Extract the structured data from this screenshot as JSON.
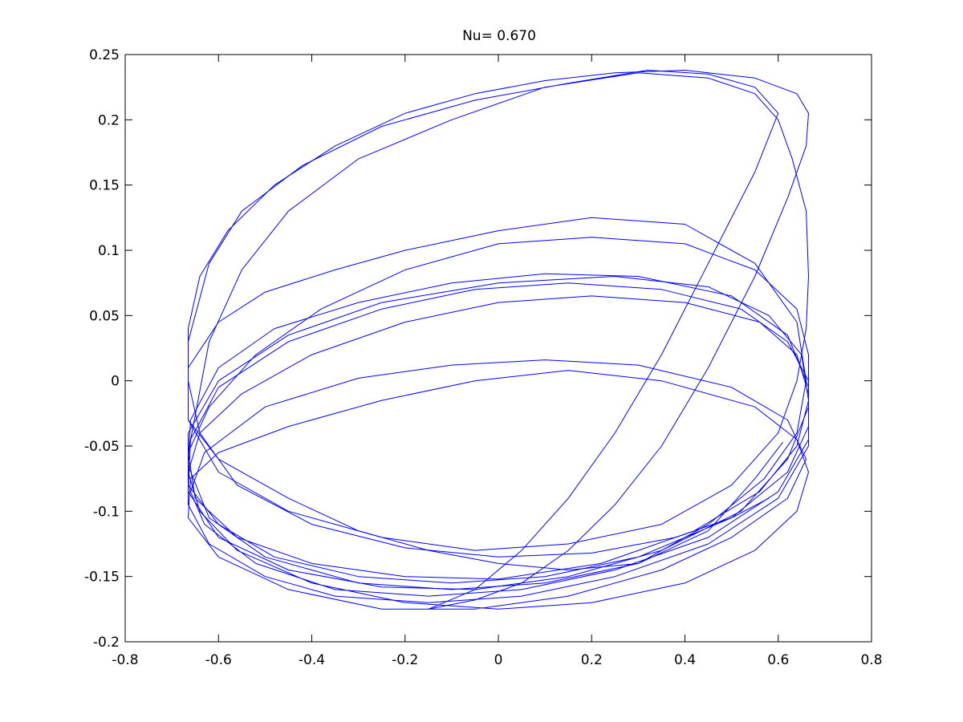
{
  "chart_data": {
    "type": "line",
    "title": "Nu= 0.670",
    "xlabel": "",
    "ylabel": "",
    "xlim": [
      -0.8,
      0.8
    ],
    "ylim": [
      -0.2,
      0.25
    ],
    "x_ticks": [
      -0.8,
      -0.6,
      -0.4,
      -0.2,
      0,
      0.2,
      0.4,
      0.6,
      0.8
    ],
    "x_tick_labels": [
      "-0.8",
      "-0.6",
      "-0.4",
      "-0.2",
      "0",
      "0.2",
      "0.4",
      "0.6",
      "0.8"
    ],
    "y_ticks": [
      -0.2,
      -0.15,
      -0.1,
      -0.05,
      0,
      0.05,
      0.1,
      0.15,
      0.2,
      0.25
    ],
    "y_tick_labels": [
      "-0.2",
      "-0.15",
      "-0.1",
      "-0.05",
      "0",
      "0.05",
      "0.1",
      "0.15",
      "0.2",
      "0.25"
    ],
    "grid": false,
    "legend": "none",
    "series_color": "#0000ff",
    "series": [
      {
        "points": [
          [
            0.61,
            -0.047
          ],
          [
            0.55,
            -0.075
          ],
          [
            0.45,
            -0.115
          ],
          [
            0.3,
            -0.14
          ],
          [
            0.15,
            -0.145
          ],
          [
            0.0,
            -0.14
          ],
          [
            -0.15,
            -0.13
          ],
          [
            -0.3,
            -0.115
          ],
          [
            -0.45,
            -0.09
          ],
          [
            -0.6,
            -0.06
          ],
          [
            -0.665,
            -0.03
          ],
          [
            -0.665,
            0.01
          ],
          [
            -0.6,
            0.045
          ],
          [
            -0.5,
            0.068
          ],
          [
            -0.35,
            0.085
          ],
          [
            -0.2,
            0.1
          ],
          [
            0.0,
            0.115
          ],
          [
            0.2,
            0.125
          ],
          [
            0.4,
            0.12
          ],
          [
            0.55,
            0.09
          ],
          [
            0.64,
            0.045
          ],
          [
            0.66,
            0.0
          ],
          [
            0.64,
            -0.04
          ],
          [
            0.57,
            -0.075
          ],
          [
            0.45,
            -0.11
          ],
          [
            0.3,
            -0.14
          ],
          [
            0.1,
            -0.155
          ],
          [
            -0.1,
            -0.16
          ],
          [
            -0.3,
            -0.155
          ],
          [
            -0.5,
            -0.135
          ],
          [
            -0.62,
            -0.105
          ],
          [
            -0.665,
            -0.065
          ],
          [
            -0.66,
            -0.03
          ],
          [
            -0.6,
            0.01
          ],
          [
            -0.48,
            0.04
          ],
          [
            -0.3,
            0.06
          ],
          [
            -0.1,
            0.075
          ],
          [
            0.1,
            0.082
          ],
          [
            0.3,
            0.08
          ],
          [
            0.5,
            0.065
          ],
          [
            0.62,
            0.035
          ],
          [
            0.665,
            -0.005
          ],
          [
            0.665,
            -0.045
          ],
          [
            0.6,
            -0.085
          ],
          [
            0.45,
            -0.12
          ],
          [
            0.25,
            -0.145
          ],
          [
            0.05,
            -0.16
          ],
          [
            -0.15,
            -0.165
          ],
          [
            -0.35,
            -0.16
          ],
          [
            -0.52,
            -0.14
          ],
          [
            -0.63,
            -0.11
          ],
          [
            -0.66,
            -0.085
          ],
          [
            -0.63,
            -0.055
          ],
          [
            -0.5,
            -0.02
          ],
          [
            -0.3,
            0.002
          ],
          [
            -0.1,
            0.012
          ],
          [
            0.1,
            0.016
          ],
          [
            0.3,
            0.012
          ],
          [
            0.5,
            -0.005
          ],
          [
            0.62,
            -0.03
          ],
          [
            0.66,
            -0.06
          ],
          [
            0.62,
            -0.09
          ],
          [
            0.5,
            -0.12
          ],
          [
            0.35,
            -0.145
          ],
          [
            0.15,
            -0.165
          ],
          [
            -0.05,
            -0.175
          ],
          [
            -0.25,
            -0.175
          ],
          [
            -0.45,
            -0.16
          ],
          [
            -0.6,
            -0.135
          ],
          [
            -0.665,
            -0.105
          ],
          [
            -0.66,
            -0.075
          ],
          [
            -0.6,
            -0.055
          ],
          [
            -0.45,
            -0.035
          ],
          [
            -0.25,
            -0.015
          ],
          [
            -0.05,
            0.0
          ],
          [
            0.15,
            0.008
          ],
          [
            0.35,
            0.0
          ],
          [
            0.55,
            -0.02
          ],
          [
            0.64,
            -0.045
          ],
          [
            0.665,
            -0.07
          ],
          [
            0.64,
            -0.1
          ],
          [
            0.55,
            -0.13
          ],
          [
            0.4,
            -0.155
          ],
          [
            0.2,
            -0.17
          ],
          [
            0.0,
            -0.175
          ],
          [
            -0.2,
            -0.17
          ],
          [
            -0.4,
            -0.155
          ],
          [
            -0.56,
            -0.13
          ],
          [
            -0.64,
            -0.1
          ],
          [
            -0.665,
            -0.07
          ]
        ]
      },
      {
        "points": [
          [
            -0.665,
            -0.07
          ],
          [
            -0.64,
            -0.04
          ],
          [
            -0.55,
            -0.01
          ],
          [
            -0.4,
            0.02
          ],
          [
            -0.2,
            0.045
          ],
          [
            0.0,
            0.06
          ],
          [
            0.2,
            0.065
          ],
          [
            0.4,
            0.06
          ],
          [
            0.56,
            0.045
          ],
          [
            0.64,
            0.02
          ],
          [
            0.665,
            -0.01
          ],
          [
            0.665,
            -0.05
          ],
          [
            0.6,
            -0.09
          ],
          [
            0.45,
            -0.125
          ],
          [
            0.25,
            -0.15
          ],
          [
            0.05,
            -0.165
          ],
          [
            -0.15,
            -0.17
          ],
          [
            -0.35,
            -0.165
          ],
          [
            -0.5,
            -0.15
          ],
          [
            -0.62,
            -0.125
          ],
          [
            -0.665,
            -0.095
          ],
          [
            -0.665,
            -0.055
          ],
          [
            -0.62,
            -0.02
          ],
          [
            -0.52,
            0.02
          ],
          [
            -0.38,
            0.055
          ],
          [
            -0.2,
            0.085
          ],
          [
            0.0,
            0.105
          ],
          [
            0.2,
            0.11
          ],
          [
            0.4,
            0.105
          ],
          [
            0.55,
            0.085
          ],
          [
            0.64,
            0.055
          ],
          [
            0.665,
            0.02
          ],
          [
            0.665,
            -0.02
          ],
          [
            0.62,
            -0.06
          ],
          [
            0.52,
            -0.1
          ],
          [
            0.35,
            -0.13
          ],
          [
            0.15,
            -0.15
          ],
          [
            -0.05,
            -0.16
          ],
          [
            -0.25,
            -0.158
          ],
          [
            -0.45,
            -0.145
          ],
          [
            -0.6,
            -0.12
          ],
          [
            -0.665,
            -0.085
          ],
          [
            -0.66,
            -0.045
          ],
          [
            -0.6,
            -0.005
          ],
          [
            -0.45,
            0.03
          ],
          [
            -0.25,
            0.055
          ],
          [
            -0.05,
            0.07
          ],
          [
            0.15,
            0.075
          ],
          [
            0.35,
            0.07
          ],
          [
            0.52,
            0.055
          ],
          [
            0.62,
            0.03
          ],
          [
            0.665,
            0.0
          ],
          [
            0.665,
            -0.035
          ],
          [
            0.62,
            -0.07
          ],
          [
            0.5,
            -0.105
          ],
          [
            0.3,
            -0.135
          ],
          [
            0.1,
            -0.15
          ],
          [
            -0.1,
            -0.155
          ],
          [
            -0.3,
            -0.15
          ],
          [
            -0.48,
            -0.135
          ],
          [
            -0.6,
            -0.11
          ],
          [
            -0.665,
            -0.08
          ],
          [
            -0.665,
            -0.04
          ],
          [
            -0.6,
            0.0
          ],
          [
            -0.45,
            0.035
          ],
          [
            -0.25,
            0.06
          ],
          [
            0.0,
            0.075
          ],
          [
            0.25,
            0.08
          ],
          [
            0.45,
            0.072
          ],
          [
            0.58,
            0.05
          ],
          [
            0.65,
            0.02
          ],
          [
            0.665,
            -0.015
          ],
          [
            0.64,
            -0.05
          ],
          [
            0.56,
            -0.085
          ],
          [
            0.42,
            -0.115
          ],
          [
            0.22,
            -0.14
          ],
          [
            0.0,
            -0.152
          ],
          [
            -0.2,
            -0.15
          ],
          [
            -0.4,
            -0.14
          ],
          [
            -0.56,
            -0.12
          ],
          [
            -0.65,
            -0.09
          ],
          [
            -0.665,
            -0.055
          ]
        ]
      },
      {
        "points": [
          [
            -0.665,
            -0.055
          ],
          [
            -0.62,
            0.03
          ],
          [
            -0.55,
            0.085
          ],
          [
            -0.45,
            0.13
          ],
          [
            -0.3,
            0.17
          ],
          [
            -0.1,
            0.2
          ],
          [
            0.1,
            0.225
          ],
          [
            0.3,
            0.236
          ],
          [
            0.45,
            0.232
          ],
          [
            0.55,
            0.22
          ],
          [
            0.6,
            0.2
          ],
          [
            0.63,
            0.17
          ],
          [
            0.66,
            0.13
          ],
          [
            0.665,
            0.08
          ],
          [
            0.66,
            0.04
          ],
          [
            0.64,
            0.0
          ],
          [
            0.6,
            -0.04
          ],
          [
            0.5,
            -0.08
          ],
          [
            0.35,
            -0.11
          ],
          [
            0.15,
            -0.125
          ],
          [
            -0.05,
            -0.13
          ],
          [
            -0.25,
            -0.12
          ],
          [
            -0.45,
            -0.1
          ],
          [
            -0.6,
            -0.07
          ],
          [
            -0.665,
            -0.03
          ],
          [
            -0.665,
            0.03
          ],
          [
            -0.62,
            0.09
          ],
          [
            -0.55,
            0.13
          ],
          [
            -0.42,
            0.165
          ],
          [
            -0.25,
            0.195
          ],
          [
            -0.05,
            0.215
          ],
          [
            0.15,
            0.228
          ],
          [
            0.32,
            0.238
          ],
          [
            0.45,
            0.235
          ],
          [
            0.55,
            0.225
          ],
          [
            0.6,
            0.205
          ],
          [
            0.55,
            0.16
          ],
          [
            0.45,
            0.09
          ],
          [
            0.35,
            0.02
          ],
          [
            0.25,
            -0.04
          ],
          [
            0.15,
            -0.09
          ],
          [
            0.05,
            -0.13
          ],
          [
            -0.05,
            -0.16
          ],
          [
            -0.15,
            -0.175
          ]
        ]
      },
      {
        "points": [
          [
            -0.15,
            -0.175
          ],
          [
            -0.05,
            -0.168
          ],
          [
            0.05,
            -0.155
          ],
          [
            0.15,
            -0.13
          ],
          [
            0.25,
            -0.095
          ],
          [
            0.35,
            -0.05
          ],
          [
            0.45,
            0.01
          ],
          [
            0.55,
            0.08
          ],
          [
            0.62,
            0.14
          ],
          [
            0.66,
            0.18
          ],
          [
            0.665,
            0.205
          ],
          [
            0.64,
            0.22
          ],
          [
            0.55,
            0.232
          ],
          [
            0.4,
            0.238
          ],
          [
            0.25,
            0.236
          ],
          [
            0.1,
            0.23
          ],
          [
            -0.05,
            0.22
          ],
          [
            -0.2,
            0.205
          ],
          [
            -0.35,
            0.18
          ],
          [
            -0.48,
            0.15
          ],
          [
            -0.58,
            0.115
          ],
          [
            -0.64,
            0.08
          ],
          [
            -0.665,
            0.04
          ],
          [
            -0.665,
            0.0
          ],
          [
            -0.64,
            -0.04
          ],
          [
            -0.56,
            -0.08
          ],
          [
            -0.4,
            -0.11
          ],
          [
            -0.2,
            -0.128
          ],
          [
            0.0,
            -0.135
          ],
          [
            0.2,
            -0.132
          ],
          [
            0.38,
            -0.12
          ],
          [
            0.5,
            -0.105
          ],
          [
            0.58,
            -0.09
          ]
        ]
      }
    ]
  }
}
